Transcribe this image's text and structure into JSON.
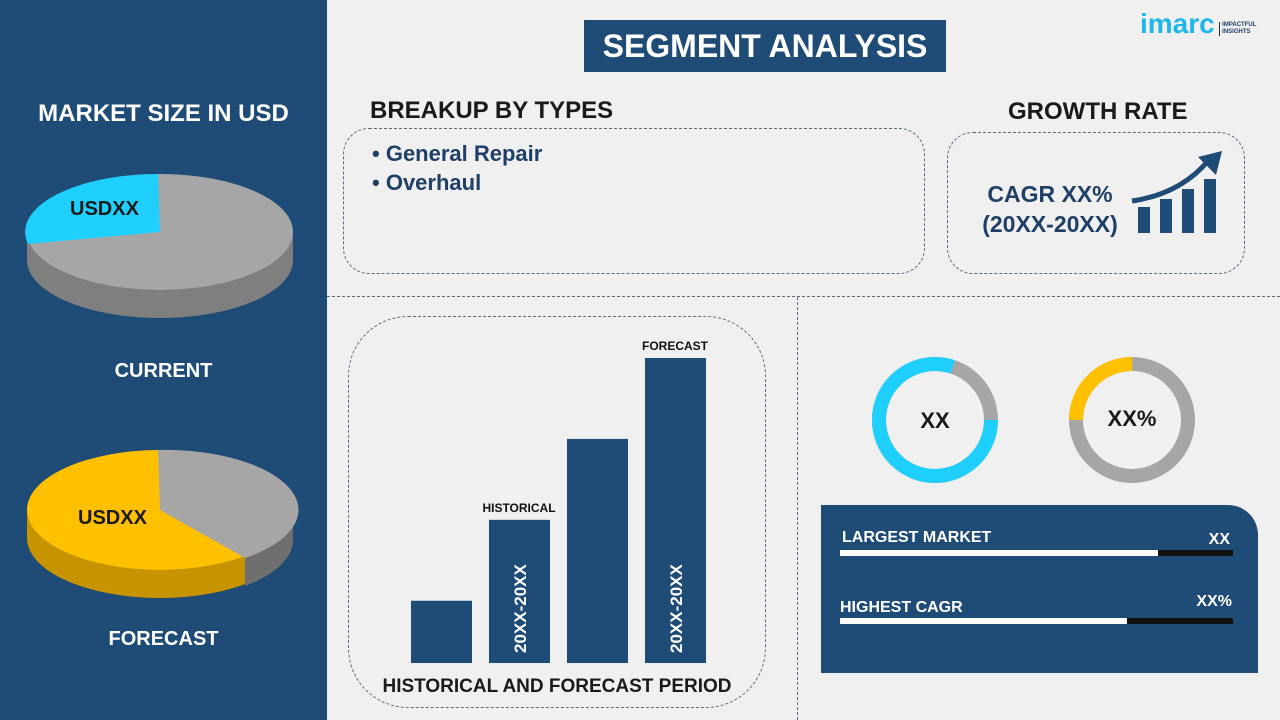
{
  "logo": {
    "brand": "imarc",
    "tagline": "IMPACTFUL INSIGHTS"
  },
  "title": "SEGMENT ANALYSIS",
  "left": {
    "heading": "MARKET SIZE IN USD",
    "current": {
      "value": "USDXX",
      "label": "CURRENT"
    },
    "forecast": {
      "value": "USDXX",
      "label": "FORECAST"
    }
  },
  "breakup": {
    "heading": "BREAKUP BY TYPES",
    "items": [
      "General Repair",
      "Overhaul"
    ]
  },
  "growth": {
    "heading": "GROWTH RATE",
    "cagr": "CAGR XX%",
    "period": "(20XX-20XX)"
  },
  "chart_data": {
    "type": "bar",
    "categories": [
      "",
      "20XX-20XX",
      "",
      "20XX-20XX"
    ],
    "values": [
      1,
      2.3,
      3.6,
      4.9
    ],
    "annotations": [
      "HISTORICAL",
      "FORECAST"
    ],
    "xlabel": "HISTORICAL AND FORECAST PERIOD",
    "bar_color": "#1f4c76"
  },
  "donuts": [
    {
      "label": "XX",
      "fill_percent": 80,
      "color": "#1fd0ff"
    },
    {
      "label": "XX%",
      "fill_percent": 25,
      "color": "#ffc000"
    }
  ],
  "stats": [
    {
      "label": "LARGEST MARKET",
      "value": "XX",
      "fill_percent": 81
    },
    {
      "label": "HIGHEST CAGR",
      "value": "XX%",
      "fill_percent": 73
    }
  ],
  "colors": {
    "navy": "#1f4c76",
    "cyan": "#1fd0ff",
    "yellow": "#ffc000",
    "grey": "#a6a6a6"
  }
}
